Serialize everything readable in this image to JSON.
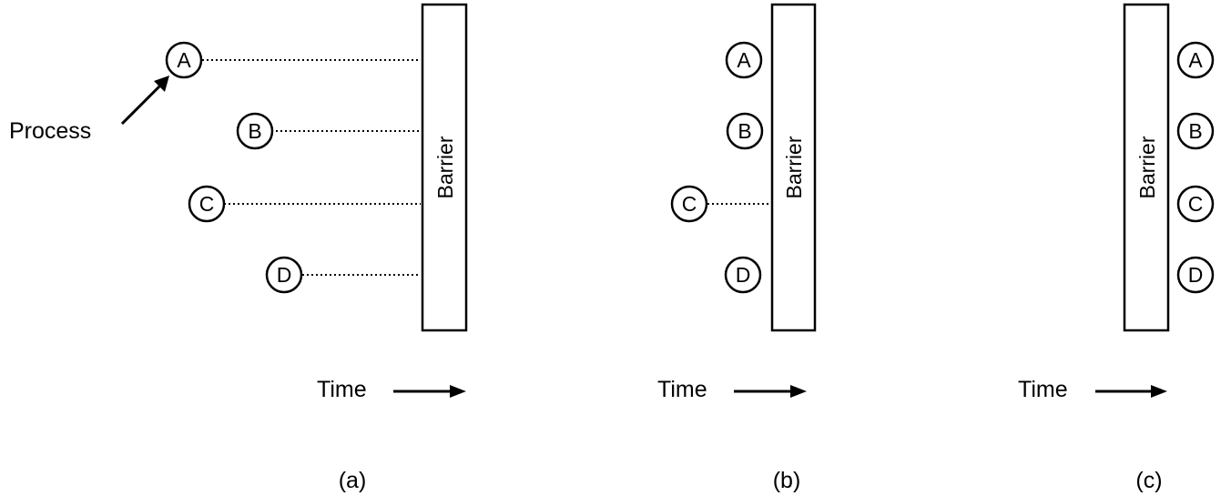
{
  "panels": [
    {
      "caption": "(a)",
      "barrier_label": "Barrier",
      "time_label": "Time",
      "process_pointer_label": "Process",
      "processes": [
        {
          "id": "A",
          "label": "A",
          "waiting": true
        },
        {
          "id": "B",
          "label": "B",
          "waiting": true
        },
        {
          "id": "C",
          "label": "C",
          "waiting": true
        },
        {
          "id": "D",
          "label": "D",
          "waiting": true
        }
      ]
    },
    {
      "caption": "(b)",
      "barrier_label": "Barrier",
      "time_label": "Time",
      "processes": [
        {
          "id": "A",
          "label": "A",
          "waiting": false
        },
        {
          "id": "B",
          "label": "B",
          "waiting": false
        },
        {
          "id": "C",
          "label": "C",
          "waiting": true
        },
        {
          "id": "D",
          "label": "D",
          "waiting": false
        }
      ]
    },
    {
      "caption": "(c)",
      "barrier_label": "Barrier",
      "time_label": "Time",
      "processes": [
        {
          "id": "A",
          "label": "A",
          "waiting": false
        },
        {
          "id": "B",
          "label": "B",
          "waiting": false
        },
        {
          "id": "C",
          "label": "C",
          "waiting": false
        },
        {
          "id": "D",
          "label": "D",
          "waiting": false
        }
      ]
    }
  ]
}
